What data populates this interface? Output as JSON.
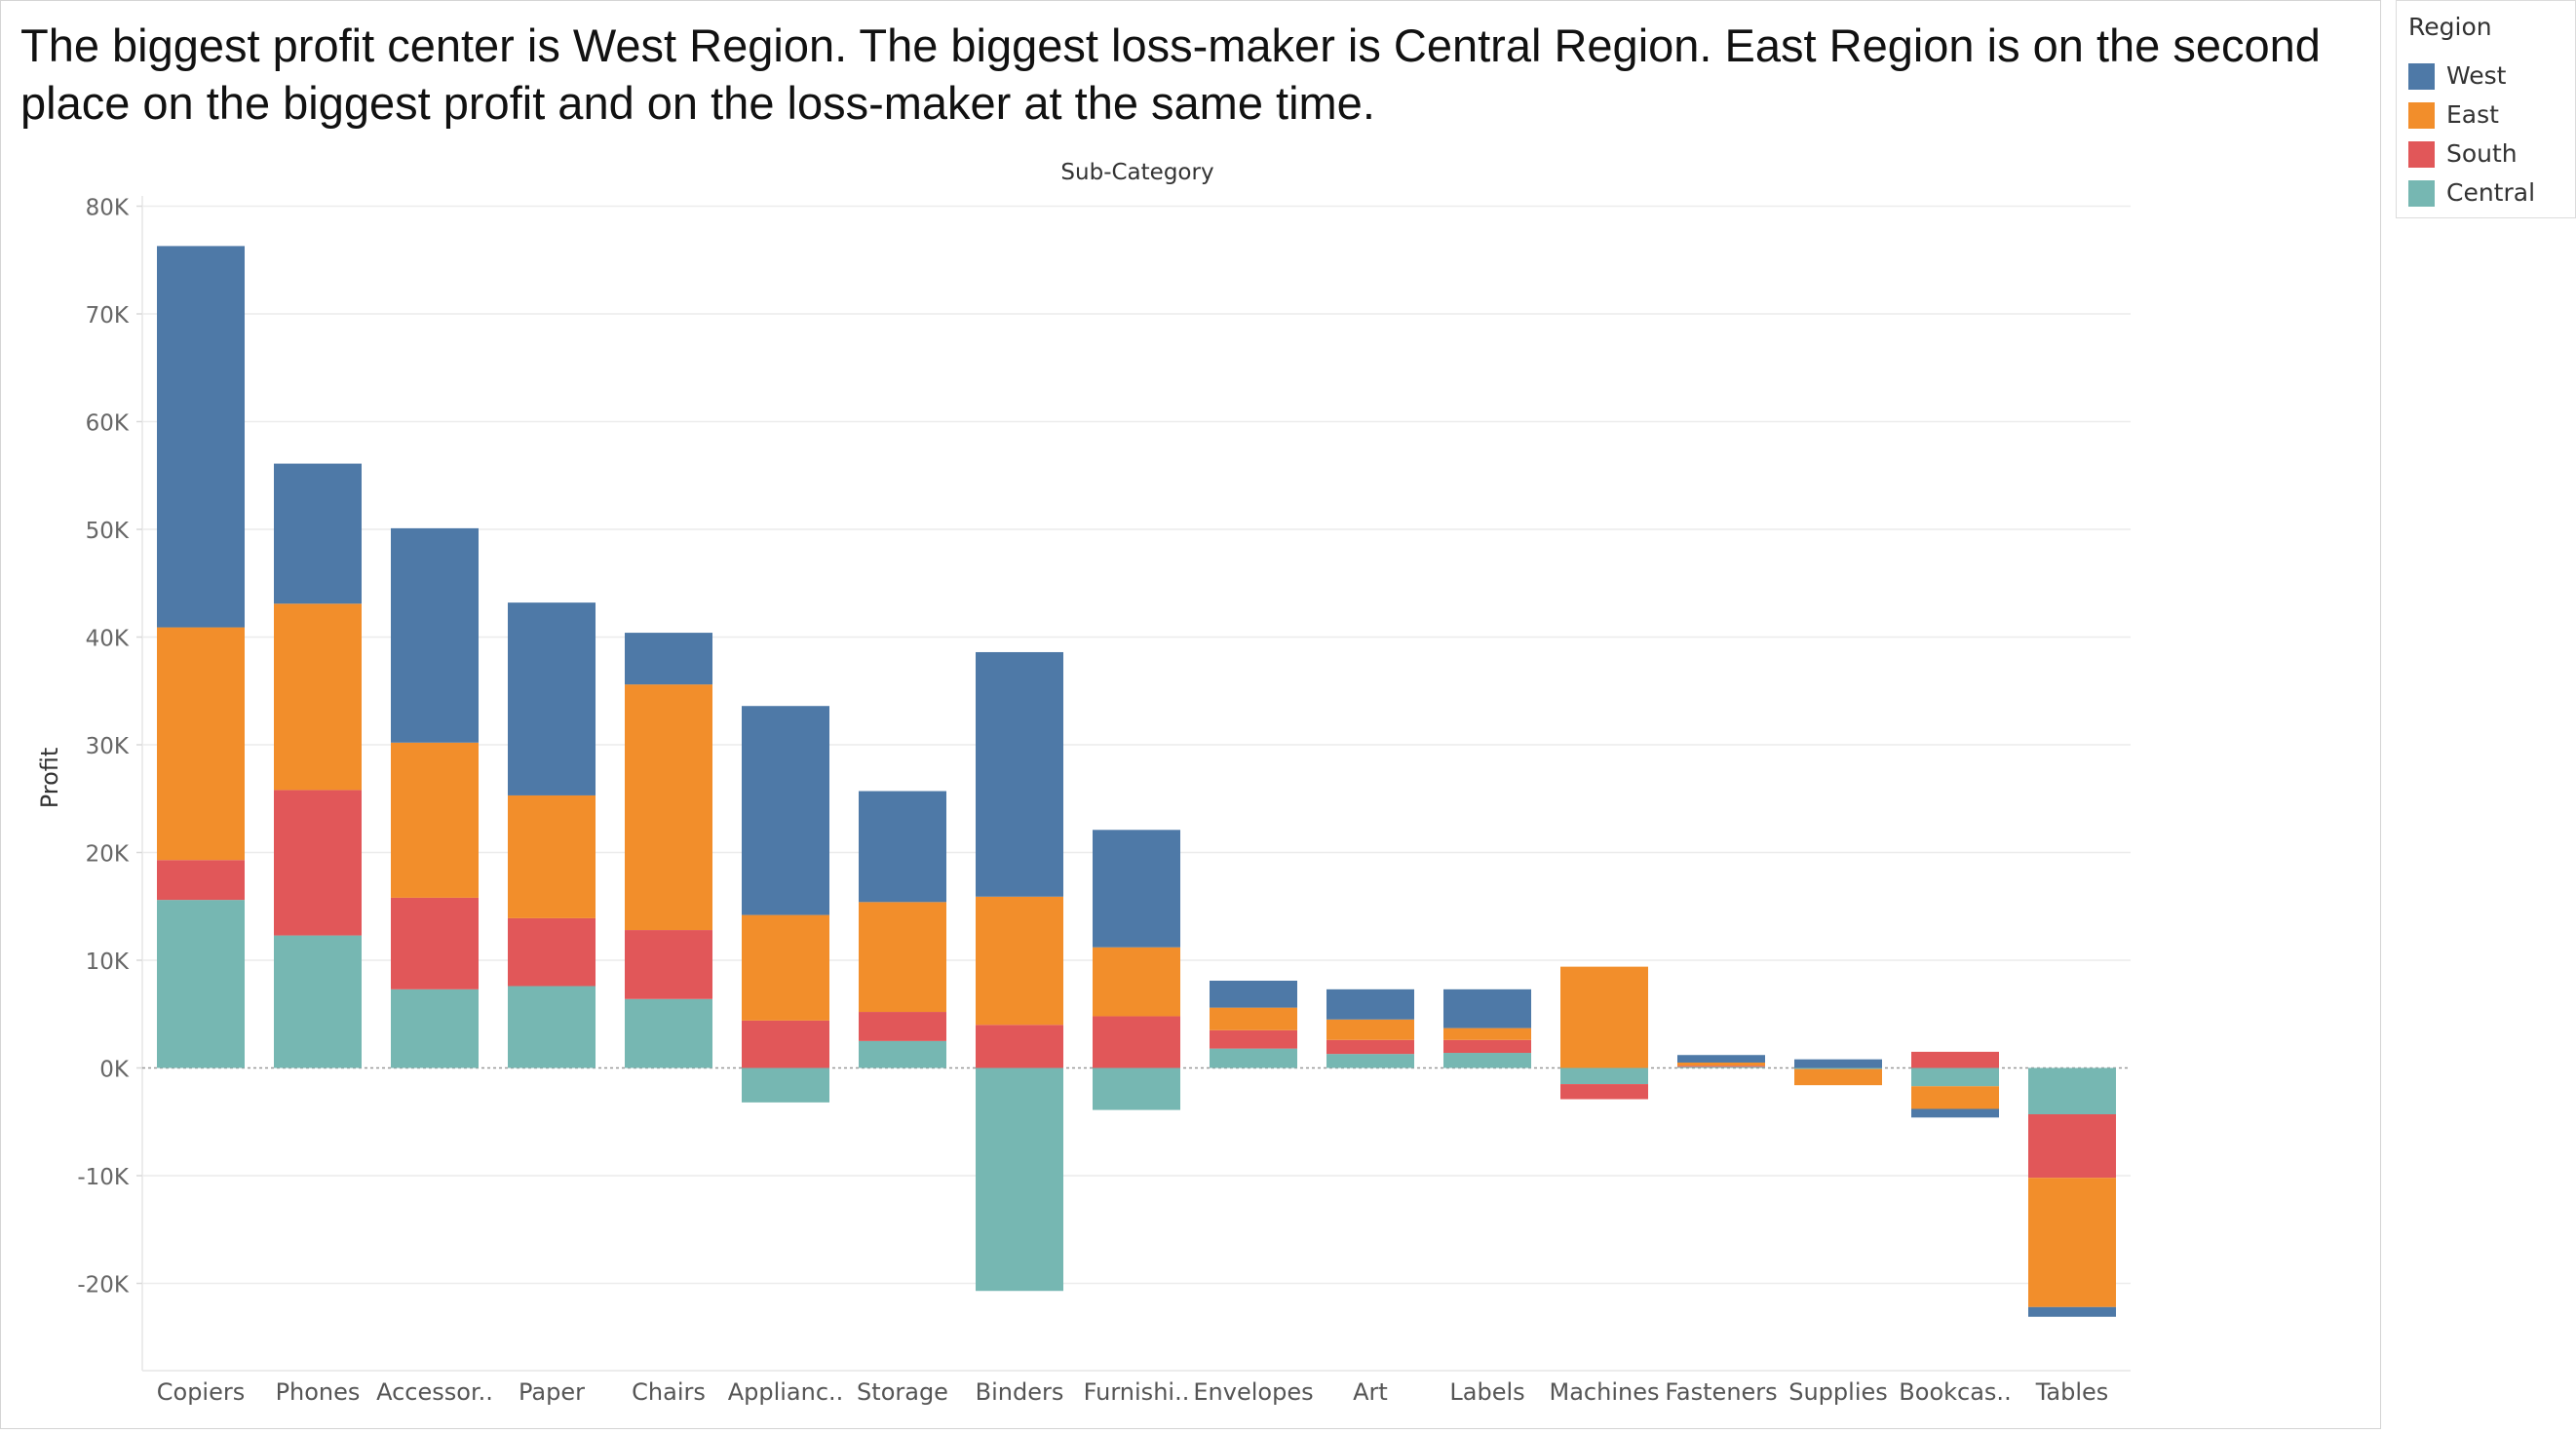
{
  "headline": "The biggest profit center is West Region. The biggest loss-maker is Central  Region. East Region is on the second place on the biggest profit and on the loss-maker at the same time.",
  "legend": {
    "title": "Region",
    "items": [
      {
        "name": "West",
        "color": "#4e79a7"
      },
      {
        "name": "East",
        "color": "#f28e2b"
      },
      {
        "name": "South",
        "color": "#e15759"
      },
      {
        "name": "Central",
        "color": "#76b7b2"
      }
    ]
  },
  "chart_data": {
    "type": "bar",
    "stacked": true,
    "title": "Sub-Category",
    "xlabel": "",
    "ylabel": "Profit",
    "ylim": [
      -25500,
      80000
    ],
    "yticks": [
      -20000,
      -10000,
      0,
      10000,
      20000,
      30000,
      40000,
      50000,
      60000,
      70000,
      80000
    ],
    "ytick_labels": [
      "-20K",
      "-10K",
      "0K",
      "10K",
      "20K",
      "30K",
      "40K",
      "50K",
      "60K",
      "70K",
      "80K"
    ],
    "grid": true,
    "legend_position": "top-right",
    "categories": [
      "Copiers",
      "Phones",
      "Accessor..",
      "Paper",
      "Chairs",
      "Applianc..",
      "Storage",
      "Binders",
      "Furnishi..",
      "Envelopes",
      "Art",
      "Labels",
      "Machines",
      "Fasteners",
      "Supplies",
      "Bookcas..",
      "Tables"
    ],
    "series": [
      {
        "name": "Central",
        "color": "#76b7b2",
        "values": [
          15600,
          12300,
          7300,
          7600,
          6400,
          -3200,
          2500,
          -20700,
          -3900,
          1800,
          1300,
          1400,
          -1500,
          100,
          -100,
          -1700,
          -4300
        ]
      },
      {
        "name": "South",
        "color": "#e15759",
        "values": [
          3700,
          13500,
          8500,
          6300,
          6400,
          4400,
          2700,
          4000,
          4800,
          1700,
          1300,
          1200,
          -1400,
          100,
          0,
          1500,
          -5900
        ]
      },
      {
        "name": "East",
        "color": "#f28e2b",
        "values": [
          21600,
          17300,
          14400,
          11400,
          22800,
          9800,
          10200,
          11900,
          6400,
          2100,
          1900,
          1100,
          9400,
          300,
          -1500,
          -2100,
          -12000
        ]
      },
      {
        "name": "West",
        "color": "#4e79a7",
        "values": [
          35400,
          13000,
          19900,
          17900,
          4800,
          19400,
          10300,
          22700,
          10900,
          2500,
          2800,
          3600,
          0,
          700,
          800,
          -800,
          -900
        ]
      }
    ]
  }
}
